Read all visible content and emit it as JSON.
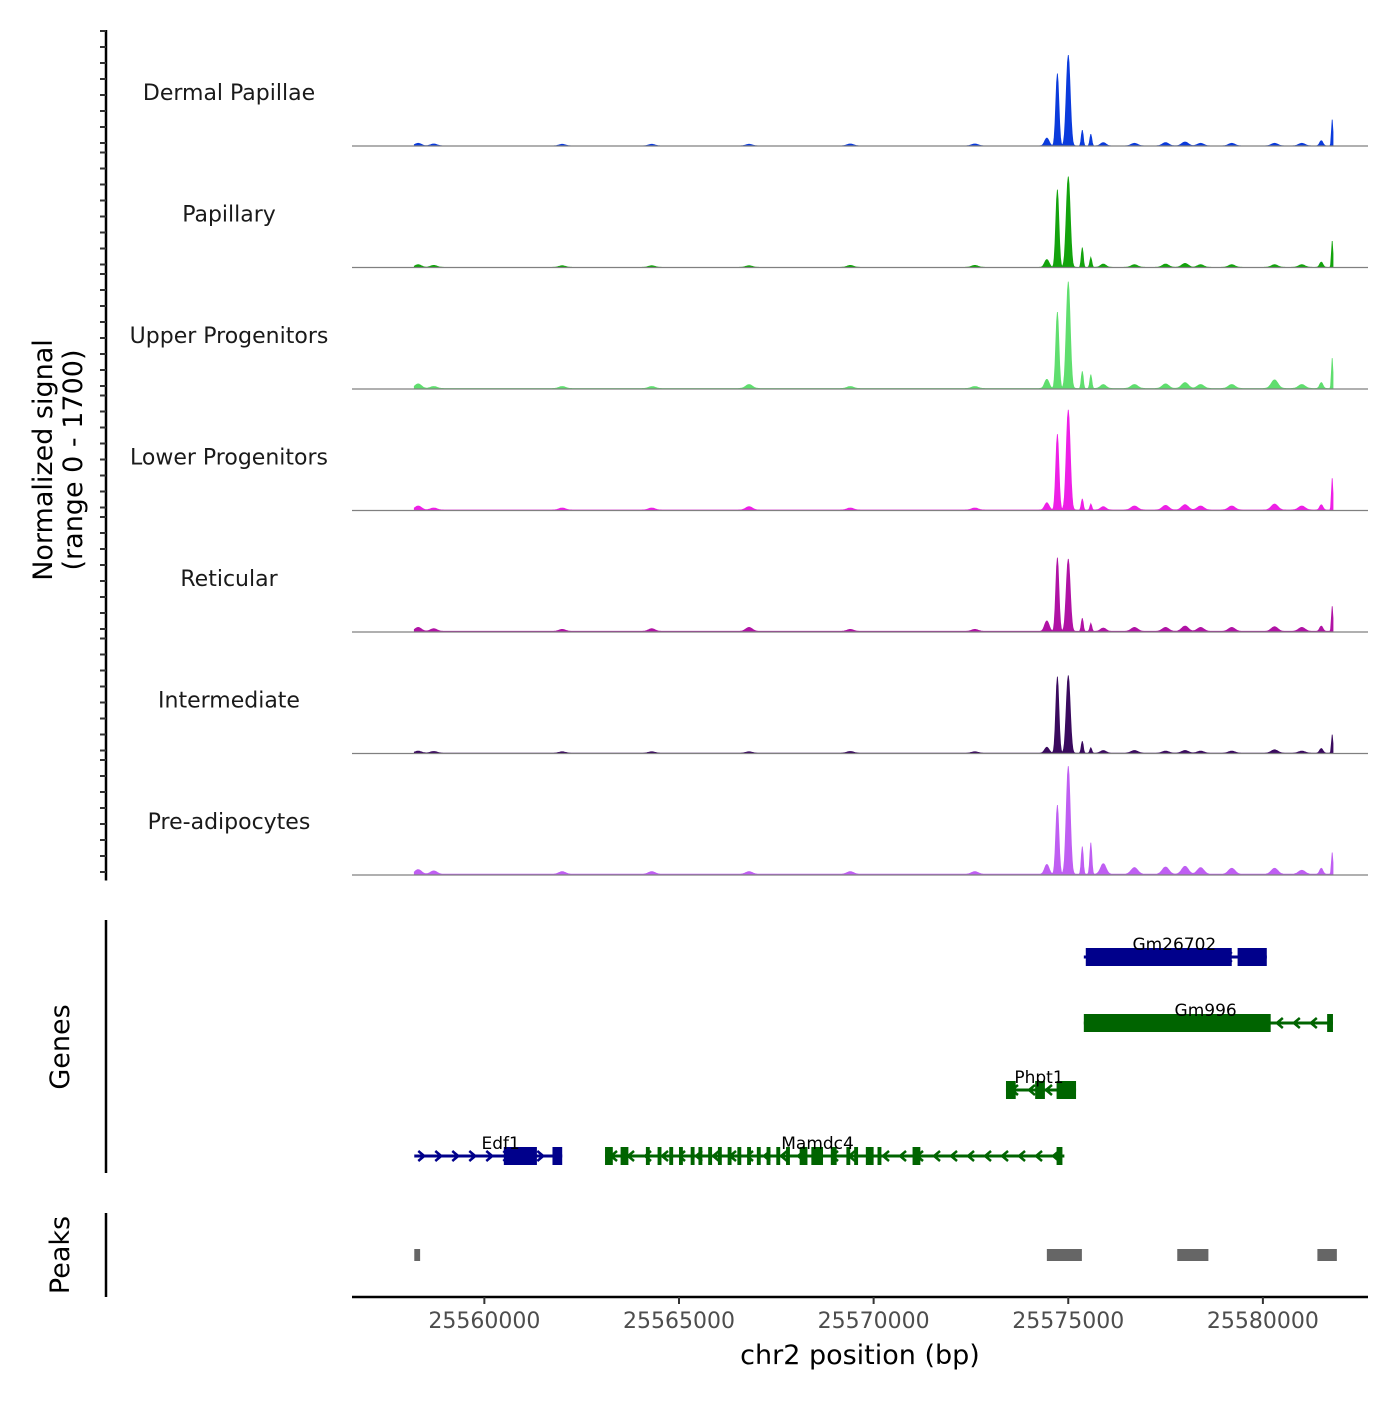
{
  "chart_data": {
    "type": "area",
    "title": "",
    "ylabel_line1": "Normalized signal",
    "ylabel_line2": "(range 0 - 1700)",
    "xlabel": "chr2 position (bp)",
    "ylim": [
      0,
      1700
    ],
    "xlim": [
      25556600,
      25582700
    ],
    "x_ticks": [
      25560000,
      25565000,
      25570000,
      25575000,
      25580000
    ],
    "x_tick_labels": [
      "25560000",
      "25565000",
      "25570000",
      "25575000",
      "25580000"
    ],
    "data_start": 25558200,
    "data_end": 25581800,
    "series": [
      {
        "name": "Dermal Papillae",
        "color": "#0b3bdc",
        "background": 1,
        "noise": [
          25558300,
          40,
          25558700,
          30,
          25562000,
          25,
          25564300,
          25,
          25566800,
          25,
          25569400,
          30,
          25572600,
          30,
          25576700,
          40,
          25577500,
          50,
          25578000,
          60,
          25578400,
          40,
          25579200,
          40,
          25580300,
          40,
          25581000,
          40
        ],
        "peaks": [
          {
            "pos": 25574450,
            "height": 120,
            "width": 80
          },
          {
            "pos": 25574720,
            "height": 1100,
            "width": 55
          },
          {
            "pos": 25575000,
            "height": 1380,
            "width": 70
          },
          {
            "pos": 25575360,
            "height": 240,
            "width": 35
          },
          {
            "pos": 25575580,
            "height": 180,
            "width": 35
          },
          {
            "pos": 25575900,
            "height": 50,
            "width": 100
          },
          {
            "pos": 25581500,
            "height": 80,
            "width": 60
          },
          {
            "pos": 25581780,
            "height": 400,
            "width": 25
          }
        ]
      },
      {
        "name": "Papillary",
        "color": "#13a30d",
        "background": 2,
        "noise": [
          25558300,
          40,
          25558700,
          30,
          25562000,
          25,
          25564300,
          25,
          25566800,
          25,
          25569400,
          30,
          25572600,
          30,
          25576700,
          40,
          25577500,
          50,
          25578000,
          60,
          25578400,
          40,
          25579200,
          40,
          25580300,
          40,
          25581000,
          40
        ],
        "peaks": [
          {
            "pos": 25574450,
            "height": 120,
            "width": 80
          },
          {
            "pos": 25574720,
            "height": 1180,
            "width": 55
          },
          {
            "pos": 25575000,
            "height": 1380,
            "width": 70
          },
          {
            "pos": 25575360,
            "height": 300,
            "width": 35
          },
          {
            "pos": 25575580,
            "height": 150,
            "width": 35
          },
          {
            "pos": 25575900,
            "height": 50,
            "width": 100
          },
          {
            "pos": 25581500,
            "height": 80,
            "width": 60
          },
          {
            "pos": 25581780,
            "height": 400,
            "width": 25
          }
        ]
      },
      {
        "name": "Upper Progenitors",
        "color": "#5fde6e",
        "background": 8,
        "noise": [
          25558300,
          70,
          25558700,
          30,
          25562000,
          30,
          25564300,
          30,
          25566800,
          60,
          25569400,
          30,
          25572600,
          30,
          25576700,
          60,
          25577500,
          70,
          25578000,
          90,
          25578400,
          60,
          25579200,
          60,
          25580300,
          130,
          25581000,
          60
        ],
        "peaks": [
          {
            "pos": 25574450,
            "height": 140,
            "width": 80
          },
          {
            "pos": 25574720,
            "height": 1160,
            "width": 55
          },
          {
            "pos": 25575000,
            "height": 1620,
            "width": 70
          },
          {
            "pos": 25575360,
            "height": 260,
            "width": 35
          },
          {
            "pos": 25575580,
            "height": 210,
            "width": 35
          },
          {
            "pos": 25575900,
            "height": 60,
            "width": 100
          },
          {
            "pos": 25581500,
            "height": 90,
            "width": 60
          },
          {
            "pos": 25581780,
            "height": 460,
            "width": 25
          }
        ]
      },
      {
        "name": "Lower Progenitors",
        "color": "#ee1fe6",
        "background": 8,
        "noise": [
          25558300,
          60,
          25558700,
          30,
          25562000,
          30,
          25564300,
          30,
          25566800,
          50,
          25569400,
          30,
          25572600,
          30,
          25576700,
          60,
          25577500,
          70,
          25578000,
          80,
          25578400,
          60,
          25579200,
          60,
          25580300,
          90,
          25581000,
          60
        ],
        "peaks": [
          {
            "pos": 25574450,
            "height": 110,
            "width": 80
          },
          {
            "pos": 25574720,
            "height": 1150,
            "width": 55
          },
          {
            "pos": 25575000,
            "height": 1520,
            "width": 70
          },
          {
            "pos": 25575360,
            "height": 170,
            "width": 35
          },
          {
            "pos": 25575580,
            "height": 90,
            "width": 35
          },
          {
            "pos": 25575900,
            "height": 50,
            "width": 100
          },
          {
            "pos": 25581500,
            "height": 80,
            "width": 60
          },
          {
            "pos": 25581780,
            "height": 480,
            "width": 25
          }
        ]
      },
      {
        "name": "Reticular",
        "color": "#b012a4",
        "background": 10,
        "noise": [
          25558300,
          60,
          25558700,
          40,
          25562000,
          30,
          25564300,
          40,
          25566800,
          60,
          25569400,
          30,
          25572600,
          30,
          25576700,
          60,
          25577500,
          60,
          25578000,
          80,
          25578400,
          60,
          25579200,
          60,
          25580300,
          70,
          25581000,
          60
        ],
        "peaks": [
          {
            "pos": 25574450,
            "height": 160,
            "width": 80
          },
          {
            "pos": 25574720,
            "height": 1120,
            "width": 55
          },
          {
            "pos": 25575000,
            "height": 1100,
            "width": 70
          },
          {
            "pos": 25575360,
            "height": 200,
            "width": 35
          },
          {
            "pos": 25575580,
            "height": 120,
            "width": 35
          },
          {
            "pos": 25575900,
            "height": 50,
            "width": 100
          },
          {
            "pos": 25581500,
            "height": 80,
            "width": 60
          },
          {
            "pos": 25581780,
            "height": 380,
            "width": 25
          }
        ]
      },
      {
        "name": "Intermediate",
        "color": "#3a0a5e",
        "background": 6,
        "noise": [
          25558300,
          30,
          25558700,
          25,
          25562000,
          20,
          25564300,
          20,
          25566800,
          20,
          25569400,
          25,
          25572600,
          20,
          25576700,
          40,
          25577500,
          30,
          25578000,
          40,
          25578400,
          30,
          25579200,
          30,
          25580300,
          50,
          25581000,
          30
        ],
        "peaks": [
          {
            "pos": 25574450,
            "height": 90,
            "width": 80
          },
          {
            "pos": 25574720,
            "height": 1160,
            "width": 55
          },
          {
            "pos": 25575000,
            "height": 1180,
            "width": 70
          },
          {
            "pos": 25575360,
            "height": 180,
            "width": 35
          },
          {
            "pos": 25575580,
            "height": 80,
            "width": 35
          },
          {
            "pos": 25575900,
            "height": 40,
            "width": 100
          },
          {
            "pos": 25581500,
            "height": 70,
            "width": 60
          },
          {
            "pos": 25581780,
            "height": 280,
            "width": 25
          }
        ]
      },
      {
        "name": "Pre-adipocytes",
        "color": "#bf5ef2",
        "background": 12,
        "noise": [
          25558300,
          70,
          25558700,
          50,
          25562000,
          40,
          25564300,
          40,
          25566800,
          40,
          25569400,
          40,
          25572600,
          40,
          25576700,
          100,
          25577500,
          110,
          25578000,
          120,
          25578400,
          100,
          25579200,
          90,
          25580300,
          90,
          25581000,
          60
        ],
        "peaks": [
          {
            "pos": 25574450,
            "height": 150,
            "width": 80
          },
          {
            "pos": 25574720,
            "height": 1050,
            "width": 55
          },
          {
            "pos": 25575000,
            "height": 1640,
            "width": 70
          },
          {
            "pos": 25575360,
            "height": 420,
            "width": 35
          },
          {
            "pos": 25575580,
            "height": 480,
            "width": 35
          },
          {
            "pos": 25575900,
            "height": 160,
            "width": 100
          },
          {
            "pos": 25581500,
            "height": 90,
            "width": 60
          },
          {
            "pos": 25581780,
            "height": 330,
            "width": 25
          }
        ]
      }
    ],
    "genes_panel_label": "Genes",
    "genes": [
      {
        "name": "Gm26702",
        "row": 0,
        "strand": "-",
        "color": "#00008b",
        "start": 25575400,
        "end": 25580100,
        "exons": [
          [
            25575450,
            25579200
          ],
          [
            25579350,
            25580100
          ]
        ]
      },
      {
        "name": "Gm996",
        "row": 1,
        "strand": "-",
        "color": "#006400",
        "start": 25575400,
        "end": 25581800,
        "exons": [
          [
            25575400,
            25580200
          ],
          [
            25581650,
            25581800
          ]
        ]
      },
      {
        "name": "Phpt1",
        "row": 2,
        "strand": "-",
        "color": "#006400",
        "start": 25573400,
        "end": 25575200,
        "exons": [
          [
            25573400,
            25573650
          ],
          [
            25574150,
            25574400
          ],
          [
            25574700,
            25575200
          ]
        ]
      },
      {
        "name": "Edf1",
        "row": 3,
        "strand": "+",
        "color": "#00008b",
        "start": 25558200,
        "end": 25562000,
        "exons": [
          [
            25560500,
            25561350
          ],
          [
            25561750,
            25562000
          ]
        ]
      },
      {
        "name": "Mamdc4",
        "row": 3,
        "strand": "-",
        "color": "#006400",
        "start": 25563100,
        "end": 25574900,
        "exons": [
          [
            25563100,
            25563300
          ],
          [
            25563500,
            25563700
          ],
          [
            25564150,
            25564250
          ],
          [
            25564450,
            25564550
          ],
          [
            25564750,
            25564850
          ],
          [
            25565000,
            25565100
          ],
          [
            25565300,
            25565400
          ],
          [
            25565500,
            25565600
          ],
          [
            25565750,
            25565850
          ],
          [
            25566000,
            25566100
          ],
          [
            25566250,
            25566350
          ],
          [
            25566500,
            25566600
          ],
          [
            25566750,
            25566850
          ],
          [
            25567000,
            25567100
          ],
          [
            25567250,
            25567350
          ],
          [
            25567500,
            25567600
          ],
          [
            25567750,
            25567850
          ],
          [
            25568100,
            25568300
          ],
          [
            25568400,
            25568700
          ],
          [
            25568900,
            25569050
          ],
          [
            25569300,
            25569400
          ],
          [
            25569500,
            25569600
          ],
          [
            25569800,
            25570000
          ],
          [
            25570100,
            25570200
          ],
          [
            25571000,
            25571200
          ],
          [
            25574700,
            25574850
          ]
        ]
      }
    ],
    "peaks_panel_label": "Peaks",
    "peaks": [
      [
        25558200,
        25558350
      ],
      [
        25574450,
        25575350
      ],
      [
        25577800,
        25578600
      ],
      [
        25581400,
        25581900
      ]
    ]
  }
}
